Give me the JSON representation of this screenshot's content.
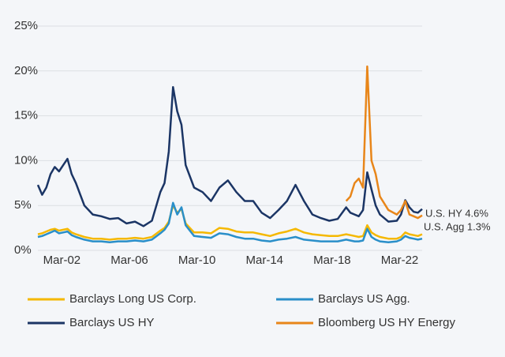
{
  "chart_data": {
    "type": "line",
    "x": [
      2000.75,
      2001.0,
      2001.25,
      2001.5,
      2001.75,
      2002.0,
      2002.25,
      2002.5,
      2002.75,
      2003.0,
      2003.5,
      2004.0,
      2004.5,
      2005.0,
      2005.5,
      2006.0,
      2006.5,
      2007.0,
      2007.5,
      2008.0,
      2008.25,
      2008.5,
      2008.75,
      2009.0,
      2009.25,
      2009.5,
      2010.0,
      2010.5,
      2011.0,
      2011.5,
      2012.0,
      2012.5,
      2013.0,
      2013.5,
      2014.0,
      2014.5,
      2015.0,
      2015.5,
      2016.0,
      2016.5,
      2017.0,
      2017.5,
      2018.0,
      2018.5,
      2019.0,
      2019.25,
      2019.5,
      2019.75,
      2020.0,
      2020.25,
      2020.5,
      2020.75,
      2021.0,
      2021.5,
      2022.0,
      2022.25,
      2022.5,
      2022.75,
      2023.0,
      2023.25,
      2023.5
    ],
    "series": [
      {
        "name": "Barclays US HY",
        "color": "#1b3565",
        "values": [
          7.3,
          6.2,
          7.0,
          8.5,
          9.3,
          8.8,
          9.5,
          10.2,
          8.5,
          7.5,
          5.0,
          4.0,
          3.8,
          3.5,
          3.6,
          3.0,
          3.2,
          2.7,
          3.3,
          6.5,
          7.5,
          11,
          18.2,
          15.5,
          14,
          9.5,
          7.0,
          6.5,
          5.5,
          7.0,
          7.8,
          6.5,
          5.5,
          5.5,
          4.2,
          3.6,
          4.5,
          5.5,
          7.3,
          5.5,
          4.0,
          3.6,
          3.3,
          3.5,
          4.8,
          4.2,
          4.0,
          3.8,
          4.5,
          8.7,
          6.8,
          5.0,
          4.0,
          3.2,
          3.3,
          4.0,
          5.6,
          4.8,
          4.3,
          4.2,
          4.6
        ]
      },
      {
        "name": "Bloomberg US HY Energy",
        "color": "#e8861a",
        "values": [
          null,
          null,
          null,
          null,
          null,
          null,
          null,
          null,
          null,
          null,
          null,
          null,
          null,
          null,
          null,
          null,
          null,
          null,
          null,
          null,
          null,
          null,
          null,
          null,
          null,
          null,
          null,
          null,
          null,
          null,
          null,
          null,
          null,
          null,
          null,
          null,
          null,
          null,
          null,
          null,
          null,
          null,
          null,
          null,
          5.5,
          6.0,
          7.5,
          8.0,
          7.0,
          20.5,
          10,
          8.5,
          6.0,
          4.5,
          4.0,
          4.5,
          5.5,
          4.0,
          3.8,
          3.6,
          3.9
        ]
      },
      {
        "name": "Barclays Long US Corp.",
        "color": "#f5b800",
        "values": [
          1.8,
          1.9,
          2.1,
          2.3,
          2.4,
          2.2,
          2.3,
          2.4,
          2.0,
          1.8,
          1.5,
          1.3,
          1.3,
          1.2,
          1.3,
          1.3,
          1.4,
          1.3,
          1.5,
          2.2,
          2.5,
          3.2,
          5.0,
          4.2,
          4.6,
          3.0,
          2.0,
          2.0,
          1.9,
          2.5,
          2.4,
          2.1,
          2.0,
          2.0,
          1.8,
          1.6,
          1.9,
          2.1,
          2.4,
          2.0,
          1.8,
          1.7,
          1.6,
          1.6,
          1.8,
          1.7,
          1.6,
          1.5,
          1.6,
          2.8,
          2.0,
          1.7,
          1.5,
          1.3,
          1.3,
          1.5,
          2.0,
          1.8,
          1.7,
          1.6,
          1.8
        ]
      },
      {
        "name": "Barclays US Agg.",
        "color": "#2a8fc9",
        "values": [
          1.5,
          1.6,
          1.8,
          2.0,
          2.2,
          1.9,
          2.0,
          2.1,
          1.7,
          1.5,
          1.2,
          1.0,
          1.0,
          0.9,
          1.0,
          1.0,
          1.1,
          1.0,
          1.2,
          1.9,
          2.3,
          3.0,
          5.3,
          4.0,
          4.8,
          2.8,
          1.6,
          1.5,
          1.4,
          1.9,
          1.8,
          1.5,
          1.3,
          1.3,
          1.1,
          1.0,
          1.2,
          1.3,
          1.5,
          1.2,
          1.1,
          1.0,
          1.0,
          1.0,
          1.2,
          1.1,
          1.0,
          1.0,
          1.1,
          2.4,
          1.5,
          1.2,
          1.0,
          0.9,
          1.0,
          1.2,
          1.6,
          1.4,
          1.3,
          1.2,
          1.3
        ]
      }
    ],
    "xlim": [
      2000.75,
      2023.5
    ],
    "xticks": [
      {
        "value": 2002.17,
        "label": "Mar-02"
      },
      {
        "value": 2006.17,
        "label": "Mar-06"
      },
      {
        "value": 2010.17,
        "label": "Mar-10"
      },
      {
        "value": 2014.17,
        "label": "Mar-14"
      },
      {
        "value": 2018.17,
        "label": "Mar-18"
      },
      {
        "value": 2022.17,
        "label": "Mar-22"
      }
    ],
    "ylim": [
      0,
      25
    ],
    "yticks": [
      {
        "value": 0,
        "label": "0%"
      },
      {
        "value": 5,
        "label": "5%"
      },
      {
        "value": 10,
        "label": "10%"
      },
      {
        "value": 15,
        "label": "15%"
      },
      {
        "value": 20,
        "label": "20%"
      },
      {
        "value": 25,
        "label": "25%"
      }
    ],
    "grid": true,
    "annotations": [
      "U.S. HY 4.6%",
      "U.S. Agg 1.3%"
    ],
    "legend": "bottom"
  }
}
